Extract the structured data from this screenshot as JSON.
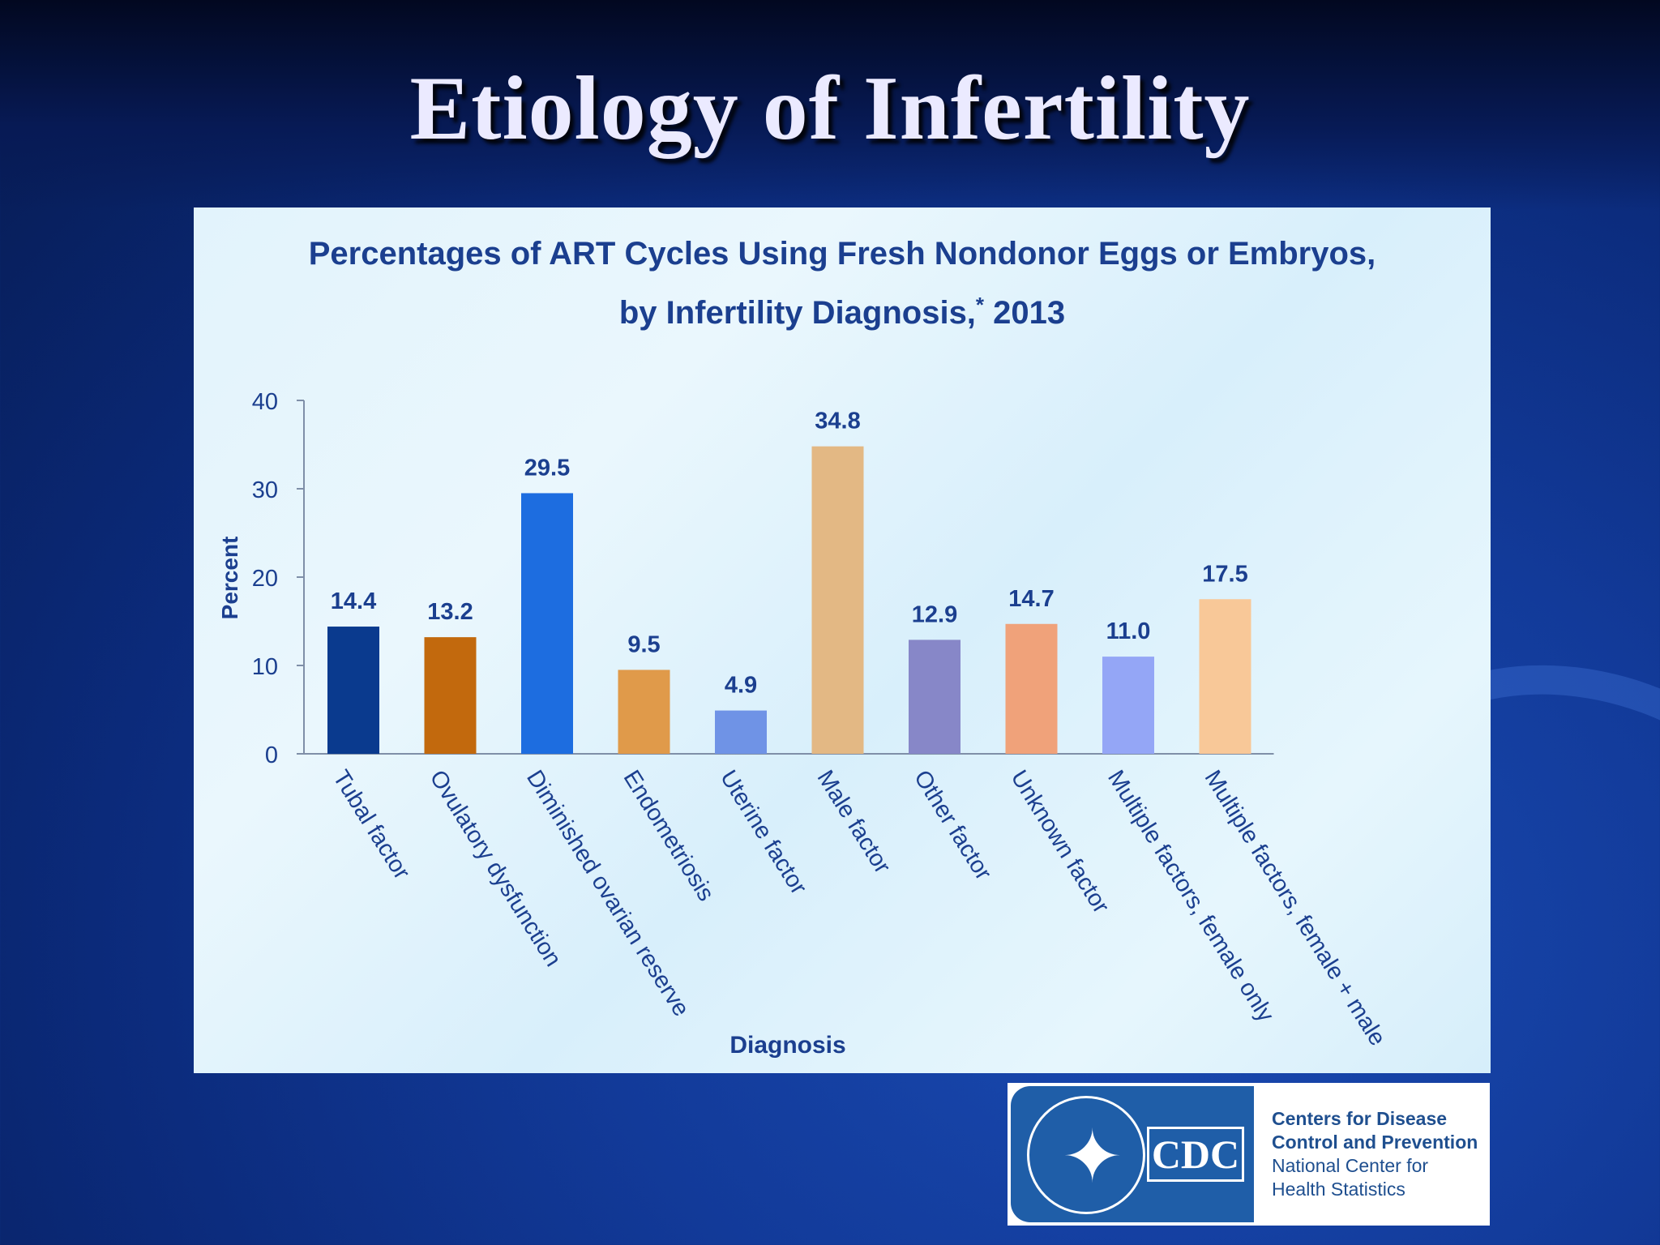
{
  "slide": {
    "title": "Etiology of Infertility"
  },
  "chart_data": {
    "type": "bar",
    "title_line1": "Percentages of ART Cycles Using Fresh Nondonor Eggs or Embryos,",
    "title_line2_prefix": "by Infertility Diagnosis,",
    "title_line2_mark": "*",
    "title_line2_suffix": " 2013",
    "xlabel": "Diagnosis",
    "ylabel": "Percent",
    "ylim": [
      0,
      40
    ],
    "yticks": [
      0,
      10,
      20,
      30,
      40
    ],
    "grid": false,
    "categories": [
      "Tubal factor",
      "Ovulatory dysfunction",
      "Diminished ovarian reserve",
      "Endometriosis",
      "Uterine factor",
      "Male factor",
      "Other factor",
      "Unknown factor",
      "Multiple factors, female only",
      "Multiple factors, female + male"
    ],
    "values": [
      14.4,
      13.2,
      29.5,
      9.5,
      4.9,
      34.8,
      12.9,
      14.7,
      11.0,
      17.5
    ],
    "value_labels": [
      "14.4",
      "13.2",
      "29.5",
      "9.5",
      "4.9",
      "34.8",
      "12.9",
      "14.7",
      "11.0",
      "17.5"
    ],
    "colors": [
      "#0a3a8e",
      "#c2690d",
      "#1d6de0",
      "#e09a4a",
      "#6f93e6",
      "#e3b884",
      "#8787c8",
      "#f0a27a",
      "#94a6f6",
      "#f8c898"
    ]
  },
  "logo": {
    "mark": "CDC",
    "line1": "Centers for Disease",
    "line2": "Control and Prevention",
    "line3": "National Center for",
    "line4": "Health Statistics"
  }
}
